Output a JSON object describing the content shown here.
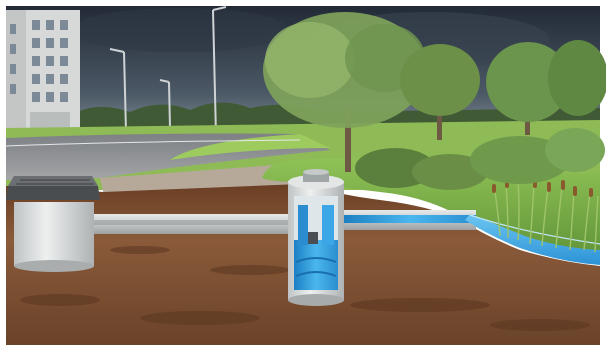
{
  "colors": {
    "sky_top": "#2b3440",
    "sky_bottom": "#6f7f8c",
    "grass": "#7fb24a",
    "soil": "#7a4f33",
    "soil_dark": "#5d3a24",
    "water": "#3aa5e0",
    "concrete": "#d9dcdc",
    "road": "#8c8f93"
  },
  "icons": {
    "building": "building-icon",
    "tree": "tree-icon",
    "manhole": "manhole-icon",
    "reeds": "reeds-icon"
  }
}
